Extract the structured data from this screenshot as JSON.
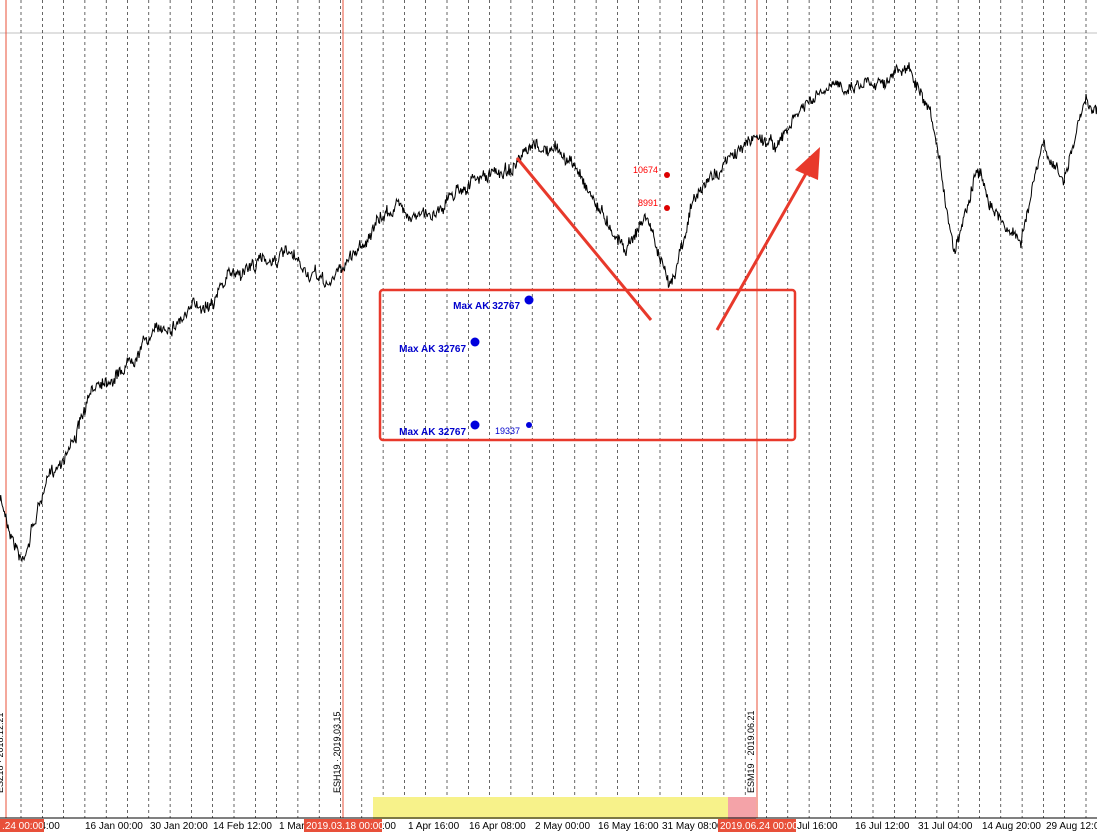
{
  "colors": {
    "background": "#ffffff",
    "price_line": "#000000",
    "grid": "#000000",
    "contract_line": "#e8503a",
    "cursor_bg": "#e8503a",
    "annotation": "#e8392b",
    "ak_marker": "#0000dd",
    "level_marker": "#dd0000",
    "period_highlight": "#f7f28a",
    "roll_highlight": "#f4a3a8"
  },
  "chart_data": {
    "type": "line",
    "title": "",
    "xlabel": "",
    "ylabel": "",
    "grid": "vertical dashed",
    "x_ticks": [
      "c 04:00",
      "16 Jan 00:00",
      "30 Jan 20:00",
      "14 Feb 12:00",
      "1 Mar",
      ":00",
      "1 Apr 16:00",
      "16 Apr 08:00",
      "2 May 00:00",
      "16 May 16:00",
      "31 May 08:00",
      "Jul 16:00",
      "16 Jul 12:00",
      "31 Jul 04:00",
      "14 Aug 20:00",
      "29 Aug 12:0"
    ],
    "cursor_labels": [
      ".24 00:00",
      "2019.03.18 00:00",
      "2019.06.24 00:00"
    ],
    "contract_rolls": [
      {
        "label": "ESZ18 · 2018.12.21"
      },
      {
        "label": "ESH19 · 2019.03.15"
      },
      {
        "label": "ESM19 · 2019.06.21"
      }
    ],
    "price_series_shape": [
      [
        0,
        500
      ],
      [
        0.02,
        560
      ],
      [
        0.04,
        490
      ],
      [
        0.07,
        430
      ],
      [
        0.09,
        380
      ],
      [
        0.11,
        370
      ],
      [
        0.13,
        340
      ],
      [
        0.16,
        320
      ],
      [
        0.19,
        300
      ],
      [
        0.21,
        275
      ],
      [
        0.24,
        260
      ],
      [
        0.26,
        255
      ],
      [
        0.28,
        275
      ],
      [
        0.3,
        285
      ],
      [
        0.32,
        255
      ],
      [
        0.34,
        230
      ],
      [
        0.36,
        205
      ],
      [
        0.39,
        218
      ],
      [
        0.42,
        185
      ],
      [
        0.45,
        175
      ],
      [
        0.47,
        165
      ],
      [
        0.49,
        150
      ],
      [
        0.51,
        152
      ],
      [
        0.53,
        175
      ],
      [
        0.55,
        215
      ],
      [
        0.57,
        245
      ],
      [
        0.59,
        215
      ],
      [
        0.61,
        290
      ],
      [
        0.63,
        205
      ],
      [
        0.65,
        175
      ],
      [
        0.67,
        155
      ],
      [
        0.69,
        135
      ],
      [
        0.71,
        145
      ],
      [
        0.73,
        110
      ],
      [
        0.75,
        95
      ],
      [
        0.77,
        85
      ],
      [
        0.79,
        80
      ],
      [
        0.81,
        75
      ],
      [
        0.83,
        70
      ],
      [
        0.85,
        130
      ],
      [
        0.87,
        250
      ],
      [
        0.89,
        165
      ],
      [
        0.91,
        215
      ],
      [
        0.93,
        240
      ],
      [
        0.95,
        150
      ],
      [
        0.97,
        180
      ],
      [
        0.99,
        100
      ],
      [
        1.0,
        110
      ]
    ],
    "levels": [
      {
        "label": "10674"
      },
      {
        "label": "8991"
      }
    ],
    "ak_markers": [
      {
        "label": "Max AK 32767"
      },
      {
        "label": "Max AK 32767"
      },
      {
        "label": "Max AK 32767"
      },
      {
        "label": "19337"
      }
    ]
  }
}
